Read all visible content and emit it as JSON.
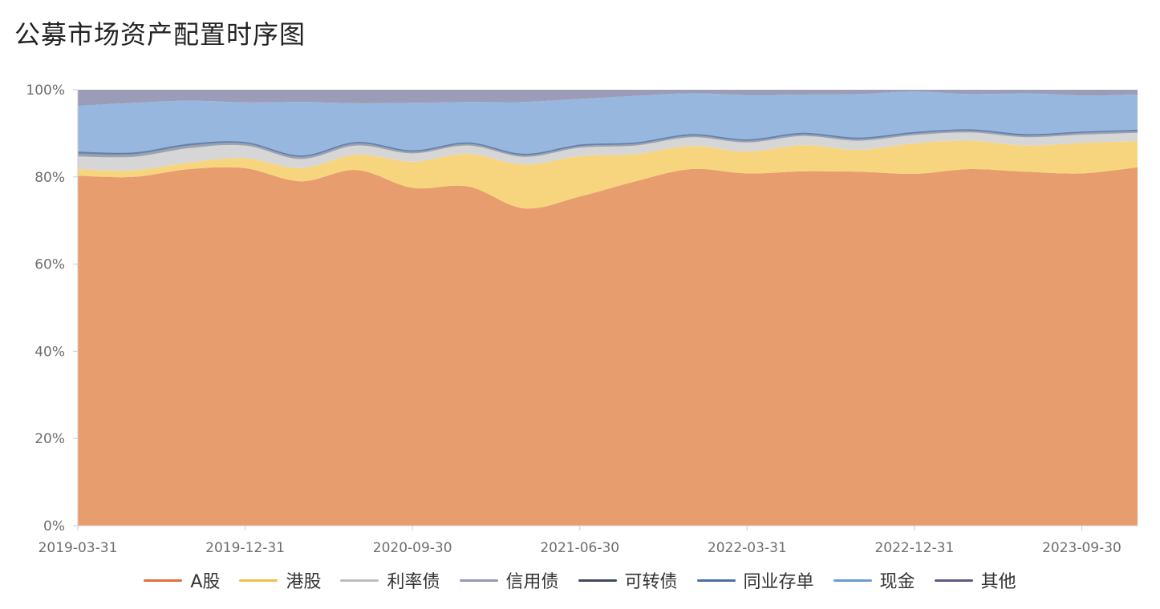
{
  "title": "公募市场资产配置时序图",
  "chart_data": {
    "type": "area",
    "stacked": true,
    "percent": true,
    "x": [
      "2019-03-31",
      "2019-06-30",
      "2019-09-30",
      "2019-12-31",
      "2020-03-31",
      "2020-06-30",
      "2020-09-30",
      "2020-12-31",
      "2021-03-31",
      "2021-06-30",
      "2021-09-30",
      "2021-12-31",
      "2022-03-31",
      "2022-06-30",
      "2022-09-30",
      "2022-12-31",
      "2023-03-31",
      "2023-06-30",
      "2023-09-30",
      "2023-12-31"
    ],
    "x_tick_labels": [
      "2019-03-31",
      "2019-12-31",
      "2020-09-30",
      "2021-06-30",
      "2022-03-31",
      "2022-12-31",
      "2023-09-30"
    ],
    "y_tick_labels": [
      "0%",
      "20%",
      "40%",
      "60%",
      "80%",
      "100%"
    ],
    "ylim": [
      0,
      100
    ],
    "grid": false,
    "legend_position": "bottom",
    "series": [
      {
        "name": "A股",
        "color": "#E89D6E",
        "values": [
          80.3,
          80.0,
          81.8,
          82.0,
          79.0,
          81.6,
          77.5,
          77.8,
          72.8,
          75.5,
          79.0,
          81.8,
          80.8,
          81.3,
          81.2,
          80.7,
          81.8,
          81.2,
          80.8,
          82.2
        ]
      },
      {
        "name": "港股",
        "color": "#F7D57E",
        "values": [
          1.5,
          1.5,
          1.5,
          2.3,
          3.0,
          3.5,
          6.0,
          7.5,
          10.0,
          9.3,
          6.2,
          5.3,
          5.0,
          6.0,
          5.0,
          7.0,
          6.5,
          6.0,
          7.0,
          6.0
        ]
      },
      {
        "name": "利率债",
        "color": "#D6D6D6",
        "values": [
          2.8,
          3.0,
          3.2,
          2.8,
          2.0,
          2.0,
          1.8,
          1.8,
          1.7,
          1.8,
          1.9,
          1.9,
          2.0,
          2.0,
          2.0,
          1.8,
          1.8,
          1.8,
          1.8,
          1.8
        ]
      },
      {
        "name": "信用债",
        "color": "#9AA3B3",
        "values": [
          0.6,
          0.6,
          0.6,
          0.5,
          0.5,
          0.5,
          0.4,
          0.4,
          0.4,
          0.4,
          0.4,
          0.4,
          0.4,
          0.4,
          0.4,
          0.4,
          0.4,
          0.4,
          0.4,
          0.4
        ]
      },
      {
        "name": "可转债",
        "color": "#7B8799",
        "values": [
          0.4,
          0.3,
          0.3,
          0.2,
          0.2,
          0.2,
          0.2,
          0.2,
          0.2,
          0.2,
          0.2,
          0.2,
          0.2,
          0.2,
          0.2,
          0.2,
          0.2,
          0.2,
          0.2,
          0.2
        ]
      },
      {
        "name": "同业存单",
        "color": "#5F7FB0",
        "values": [
          0.1,
          0.1,
          0.1,
          0.1,
          0.1,
          0.1,
          0.1,
          0.1,
          0.1,
          0.1,
          0.1,
          0.1,
          0.1,
          0.1,
          0.1,
          0.1,
          0.1,
          0.1,
          0.1,
          0.1
        ]
      },
      {
        "name": "现金",
        "color": "#97B7DF",
        "values": [
          10.6,
          11.5,
          10.0,
          9.2,
          12.4,
          9.0,
          11.0,
          9.4,
          12.0,
          10.6,
          10.8,
          9.5,
          10.3,
          8.9,
          10.1,
          9.4,
          8.2,
          9.5,
          8.4,
          8.2
        ]
      },
      {
        "name": "其他",
        "color": "#9B9CB8",
        "values": [
          3.7,
          3.0,
          2.5,
          2.9,
          2.8,
          3.1,
          3.0,
          2.8,
          2.8,
          2.1,
          1.4,
          0.8,
          1.2,
          1.1,
          1.0,
          0.4,
          1.0,
          0.8,
          1.3,
          1.1
        ]
      }
    ],
    "legend_colors": [
      "#E06F3C",
      "#F2C14A",
      "#BDBDBD",
      "#8E9BB0",
      "#3E4A5C",
      "#4A6FA5",
      "#6A9BD8",
      "#5C5A86"
    ]
  }
}
